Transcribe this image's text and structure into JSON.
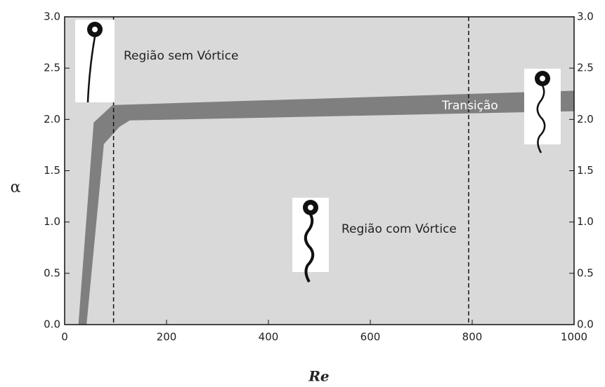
{
  "chart_data": {
    "type": "band",
    "x_label": "Re",
    "y_label": "α",
    "xlim": [
      0,
      1000
    ],
    "xticks": [
      0,
      200,
      400,
      600,
      800,
      1000
    ],
    "ylim": [
      0,
      3
    ],
    "yticks": [
      {
        "value": 0,
        "label": "0.0"
      },
      0.5,
      {
        "value": 1,
        "label": "1.0"
      },
      1.5,
      {
        "value": 2,
        "label": "2.0"
      },
      2.5,
      {
        "value": 3,
        "label": "3.0"
      }
    ],
    "y2lim": [
      0,
      3
    ],
    "y2ticks": [
      {
        "value": 0,
        "label": "0.0"
      },
      0.5,
      {
        "value": 1,
        "label": "1.0"
      },
      1.5,
      {
        "value": 2,
        "label": "2.0"
      },
      2.5,
      {
        "value": 3,
        "label": "3.0"
      }
    ],
    "band": {
      "color": "#7f7f7f",
      "x_upper": [
        27,
        57,
        94,
        1000
      ],
      "upper": [
        0,
        1.97,
        2.14,
        2.28
      ],
      "x_lower": [
        43,
        77,
        108,
        128,
        1000
      ],
      "lower": [
        0,
        1.76,
        1.93,
        1.99,
        2.08
      ]
    },
    "vlines": [
      96,
      793
    ],
    "annotations": [
      "Região sem Vórtice",
      "Transição",
      "Região com Vórtice"
    ],
    "background": "#d9d9d9"
  }
}
